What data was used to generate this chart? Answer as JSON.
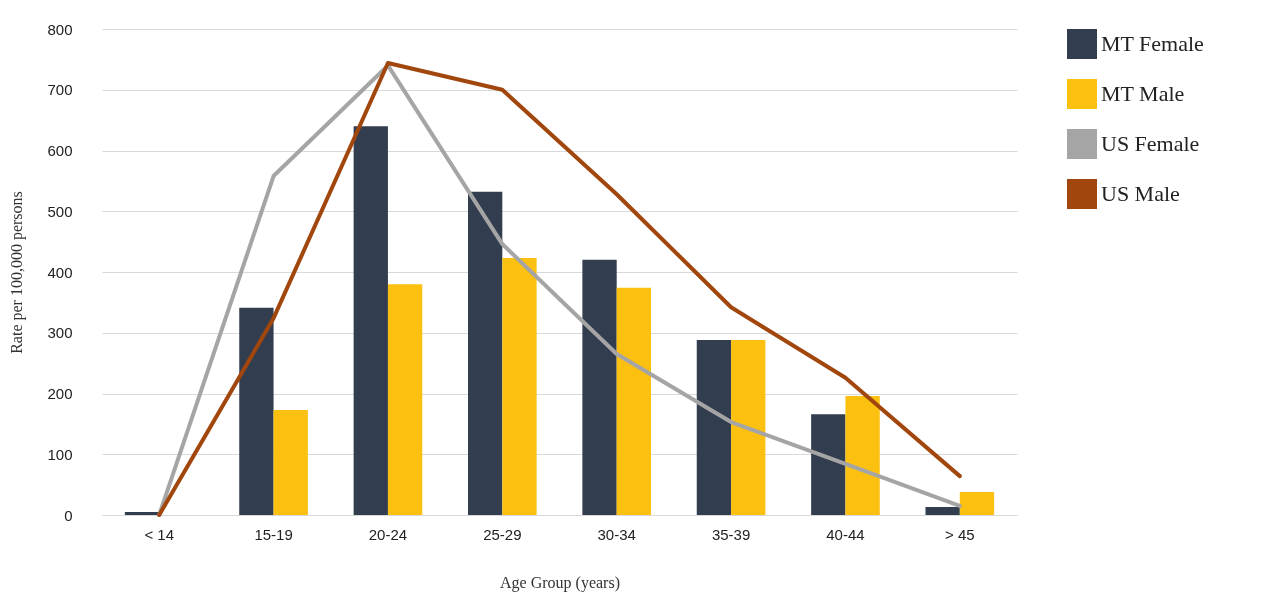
{
  "chart_data": {
    "type": "bar",
    "xlabel": "Age Group (years)",
    "ylabel": "Rate per 100,000 persons",
    "categories": [
      "< 14",
      "15-19",
      "20-24",
      "25-29",
      "30-34",
      "35-39",
      "40-44",
      "> 45"
    ],
    "series": [
      {
        "name": "MT Female",
        "color": "#323d4f",
        "values": [
          5,
          341,
          640,
          532,
          420,
          288,
          166,
          13
        ]
      },
      {
        "name": "MT Male",
        "color": "#fbc010",
        "values": [
          null,
          173,
          380,
          423,
          374,
          288,
          196,
          38
        ]
      },
      {
        "name": "US Female",
        "type": "line",
        "color": "#a5a5a5",
        "values": [
          0,
          558,
          740,
          446,
          265,
          153,
          84,
          15
        ]
      },
      {
        "name": "US Male",
        "type": "line",
        "color": "#a1460c",
        "values": [
          0,
          324,
          744,
          700,
          528,
          342,
          226,
          64
        ]
      }
    ],
    "ylim": [
      0,
      800
    ],
    "yticks": [
      0,
      100,
      200,
      300,
      400,
      500,
      600,
      700,
      800
    ],
    "grid": "y",
    "legend": "right"
  }
}
